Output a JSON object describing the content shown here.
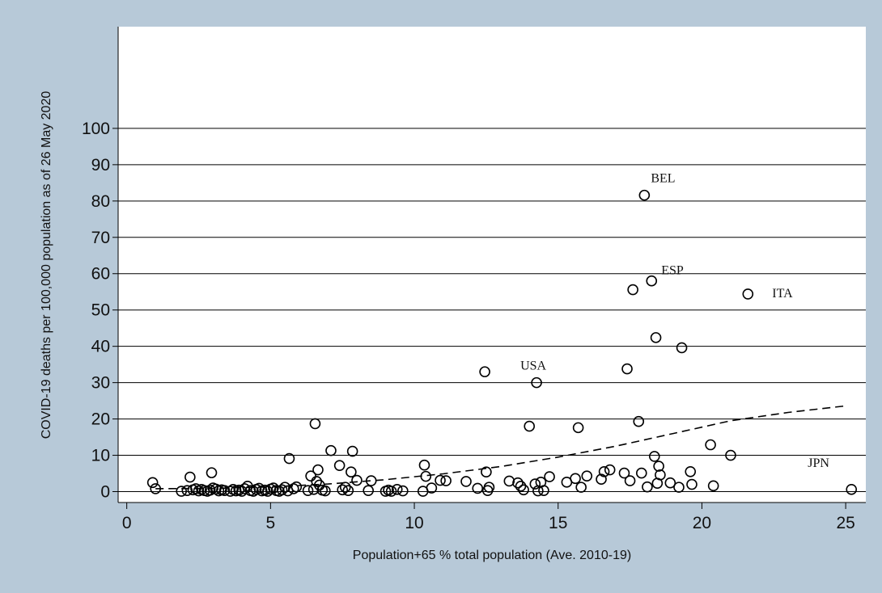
{
  "chart_data": {
    "type": "scatter",
    "xlabel": "Population+65 % total population (Ave. 2010-19)",
    "ylabel": "COVID-19 deaths per 100,000 population as of 26 May 2020",
    "xlim": [
      -0.3,
      25.7
    ],
    "ylim": [
      -3,
      128
    ],
    "x_ticks": [
      0,
      5,
      10,
      15,
      20,
      25
    ],
    "y_ticks": [
      0,
      10,
      20,
      30,
      40,
      50,
      60,
      70,
      80,
      90,
      100
    ],
    "grid": "horizontal",
    "colors": {
      "background": "#b7c9d8",
      "plot": "#ffffff",
      "marker": "#000000"
    },
    "points": [
      {
        "x": 0.9,
        "y": 2.5
      },
      {
        "x": 1.0,
        "y": 0.8
      },
      {
        "x": 1.9,
        "y": 0.1
      },
      {
        "x": 2.1,
        "y": 0.3
      },
      {
        "x": 2.2,
        "y": 4.0
      },
      {
        "x": 2.3,
        "y": 0.5
      },
      {
        "x": 2.4,
        "y": 0.8
      },
      {
        "x": 2.5,
        "y": 0.2
      },
      {
        "x": 2.6,
        "y": 0.6
      },
      {
        "x": 2.7,
        "y": 0.3
      },
      {
        "x": 2.8,
        "y": 0.1
      },
      {
        "x": 2.9,
        "y": 0.4
      },
      {
        "x": 2.95,
        "y": 5.2
      },
      {
        "x": 3.0,
        "y": 1.0
      },
      {
        "x": 3.1,
        "y": 0.7
      },
      {
        "x": 3.2,
        "y": 0.2
      },
      {
        "x": 3.3,
        "y": 0.5
      },
      {
        "x": 3.4,
        "y": 0.3
      },
      {
        "x": 3.6,
        "y": 0.1
      },
      {
        "x": 3.7,
        "y": 0.6
      },
      {
        "x": 3.8,
        "y": 0.2
      },
      {
        "x": 3.9,
        "y": 0.4
      },
      {
        "x": 4.0,
        "y": 0.1
      },
      {
        "x": 4.1,
        "y": 0.8
      },
      {
        "x": 4.2,
        "y": 1.5
      },
      {
        "x": 4.3,
        "y": 0.3
      },
      {
        "x": 4.4,
        "y": 0.1
      },
      {
        "x": 4.5,
        "y": 0.6
      },
      {
        "x": 4.6,
        "y": 0.9
      },
      {
        "x": 4.7,
        "y": 0.2
      },
      {
        "x": 4.8,
        "y": 0.4
      },
      {
        "x": 4.9,
        "y": 0.1
      },
      {
        "x": 5.0,
        "y": 0.7
      },
      {
        "x": 5.1,
        "y": 1.0
      },
      {
        "x": 5.2,
        "y": 0.3
      },
      {
        "x": 5.3,
        "y": 0.1
      },
      {
        "x": 5.4,
        "y": 0.5
      },
      {
        "x": 5.5,
        "y": 1.2
      },
      {
        "x": 5.6,
        "y": 0.2
      },
      {
        "x": 5.65,
        "y": 9.1
      },
      {
        "x": 5.8,
        "y": 0.8
      },
      {
        "x": 5.9,
        "y": 1.3
      },
      {
        "x": 6.3,
        "y": 0.3
      },
      {
        "x": 6.4,
        "y": 4.3
      },
      {
        "x": 6.5,
        "y": 0.6
      },
      {
        "x": 6.55,
        "y": 18.7
      },
      {
        "x": 6.6,
        "y": 2.8
      },
      {
        "x": 6.65,
        "y": 6.0
      },
      {
        "x": 6.7,
        "y": 1.8
      },
      {
        "x": 6.8,
        "y": 0.4
      },
      {
        "x": 6.9,
        "y": 0.2
      },
      {
        "x": 7.1,
        "y": 11.3
      },
      {
        "x": 7.4,
        "y": 7.2
      },
      {
        "x": 7.5,
        "y": 0.5
      },
      {
        "x": 7.6,
        "y": 1.2
      },
      {
        "x": 7.7,
        "y": 0.3
      },
      {
        "x": 7.8,
        "y": 5.4
      },
      {
        "x": 7.85,
        "y": 11.1
      },
      {
        "x": 8.0,
        "y": 3.1
      },
      {
        "x": 8.4,
        "y": 0.3
      },
      {
        "x": 8.5,
        "y": 3.0
      },
      {
        "x": 9.0,
        "y": 0.1
      },
      {
        "x": 9.1,
        "y": 0.4
      },
      {
        "x": 9.2,
        "y": 0.1
      },
      {
        "x": 9.4,
        "y": 0.6
      },
      {
        "x": 9.6,
        "y": 0.2
      },
      {
        "x": 10.3,
        "y": 0.1
      },
      {
        "x": 10.35,
        "y": 7.3
      },
      {
        "x": 10.4,
        "y": 4.2
      },
      {
        "x": 10.6,
        "y": 1.0
      },
      {
        "x": 10.9,
        "y": 3.1
      },
      {
        "x": 11.1,
        "y": 3.0
      },
      {
        "x": 11.8,
        "y": 2.8
      },
      {
        "x": 12.2,
        "y": 0.9
      },
      {
        "x": 12.45,
        "y": 33.0
      },
      {
        "x": 12.5,
        "y": 5.4
      },
      {
        "x": 12.55,
        "y": 0.3
      },
      {
        "x": 12.6,
        "y": 1.2
      },
      {
        "x": 13.3,
        "y": 2.9
      },
      {
        "x": 13.6,
        "y": 2.4
      },
      {
        "x": 13.7,
        "y": 1.5
      },
      {
        "x": 13.8,
        "y": 0.5
      },
      {
        "x": 14.0,
        "y": 18.0
      },
      {
        "x": 14.2,
        "y": 2.1
      },
      {
        "x": 14.25,
        "y": 30.0
      },
      {
        "x": 14.3,
        "y": 0.2
      },
      {
        "x": 14.4,
        "y": 2.6
      },
      {
        "x": 14.5,
        "y": 0.3
      },
      {
        "x": 14.7,
        "y": 4.1
      },
      {
        "x": 15.3,
        "y": 2.6
      },
      {
        "x": 15.6,
        "y": 3.6
      },
      {
        "x": 15.7,
        "y": 17.6
      },
      {
        "x": 15.8,
        "y": 1.2
      },
      {
        "x": 16.0,
        "y": 4.3
      },
      {
        "x": 16.5,
        "y": 3.4
      },
      {
        "x": 16.6,
        "y": 5.5
      },
      {
        "x": 16.8,
        "y": 6.0
      },
      {
        "x": 17.3,
        "y": 5.1
      },
      {
        "x": 17.4,
        "y": 33.8
      },
      {
        "x": 17.5,
        "y": 3.0
      },
      {
        "x": 17.6,
        "y": 55.6
      },
      {
        "x": 17.8,
        "y": 19.3
      },
      {
        "x": 17.9,
        "y": 5.1
      },
      {
        "x": 18.0,
        "y": 81.6
      },
      {
        "x": 18.1,
        "y": 1.3
      },
      {
        "x": 18.25,
        "y": 58.0
      },
      {
        "x": 18.35,
        "y": 9.7
      },
      {
        "x": 18.4,
        "y": 42.4
      },
      {
        "x": 18.45,
        "y": 2.3
      },
      {
        "x": 18.5,
        "y": 7.0
      },
      {
        "x": 18.55,
        "y": 4.6
      },
      {
        "x": 18.9,
        "y": 2.4
      },
      {
        "x": 19.2,
        "y": 1.2
      },
      {
        "x": 19.3,
        "y": 39.6
      },
      {
        "x": 19.6,
        "y": 5.5
      },
      {
        "x": 19.65,
        "y": 2.0
      },
      {
        "x": 20.3,
        "y": 12.9
      },
      {
        "x": 20.4,
        "y": 1.6
      },
      {
        "x": 21.0,
        "y": 10.0
      },
      {
        "x": 21.6,
        "y": 54.4
      },
      {
        "x": 25.2,
        "y": 0.6
      }
    ],
    "fit_line": [
      {
        "x": 1.0,
        "y": 0.8
      },
      {
        "x": 3.0,
        "y": 0.9
      },
      {
        "x": 5.0,
        "y": 1.3
      },
      {
        "x": 7.0,
        "y": 2.1
      },
      {
        "x": 9.0,
        "y": 3.3
      },
      {
        "x": 11.0,
        "y": 4.9
      },
      {
        "x": 13.0,
        "y": 6.9
      },
      {
        "x": 15.0,
        "y": 9.5
      },
      {
        "x": 17.0,
        "y": 12.5
      },
      {
        "x": 19.0,
        "y": 16.0
      },
      {
        "x": 21.0,
        "y": 19.5
      },
      {
        "x": 23.0,
        "y": 21.8
      },
      {
        "x": 25.0,
        "y": 23.6
      }
    ],
    "annotations": [
      {
        "text": "BEL",
        "x": 18.0,
        "y": 81.6
      },
      {
        "text": "ESP",
        "x": 18.25,
        "y": 58.0
      },
      {
        "text": "ITA",
        "x": 21.6,
        "y": 54.4
      },
      {
        "text": "USA",
        "x": 14.25,
        "y": 30.0
      },
      {
        "text": "JPN",
        "x": 25.2,
        "y": 0.6
      }
    ]
  }
}
